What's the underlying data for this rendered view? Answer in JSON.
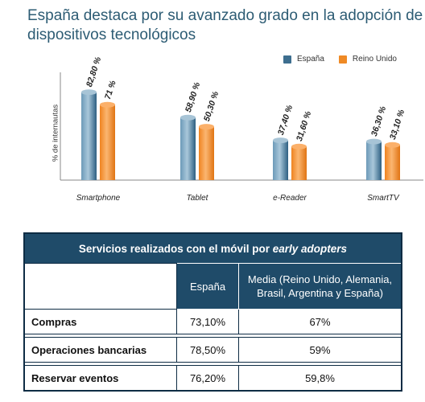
{
  "title": "España destaca por su avanzado grado en  la adopción de dispositivos tecnológicos",
  "chart_data": {
    "type": "bar",
    "title": "España destaca por su avanzado grado en  la adopción de dispositivos tecnológicos",
    "ylabel": "% de internautas",
    "xlabel": "",
    "categories": [
      "Smartphone",
      "Tablet",
      "e-Reader",
      "SmartTV"
    ],
    "series": [
      {
        "name": "España",
        "color": "#3d6e8f",
        "values": [
          82.8,
          58.9,
          37.4,
          36.3
        ],
        "labels": [
          "82,80 %",
          "58,90 %",
          "37,40 %",
          "36,30 %"
        ]
      },
      {
        "name": "Reino Unido",
        "color": "#ef8a25",
        "values": [
          71,
          50.3,
          31.6,
          33.1
        ],
        "labels": [
          "71 %",
          "50,30 %",
          "31,60 %",
          "33,10 %"
        ]
      }
    ],
    "ylim": [
      0,
      100
    ],
    "legend": "top-right",
    "grid": false
  },
  "table": {
    "title_prefix": "Servicios realizados con el móvil por ",
    "title_italic": "early adopters",
    "headers": [
      "España",
      "Media (Reino Unido, Alemania, Brasil, Argentina y España)"
    ],
    "rows": [
      {
        "label": "Compras",
        "spain": "73,10%",
        "media": "67%"
      },
      {
        "label": "Operaciones bancarias",
        "spain": "78,50%",
        "media": "59%"
      },
      {
        "label": "Reservar eventos",
        "spain": "76,20%",
        "media": "59,8%"
      }
    ]
  }
}
